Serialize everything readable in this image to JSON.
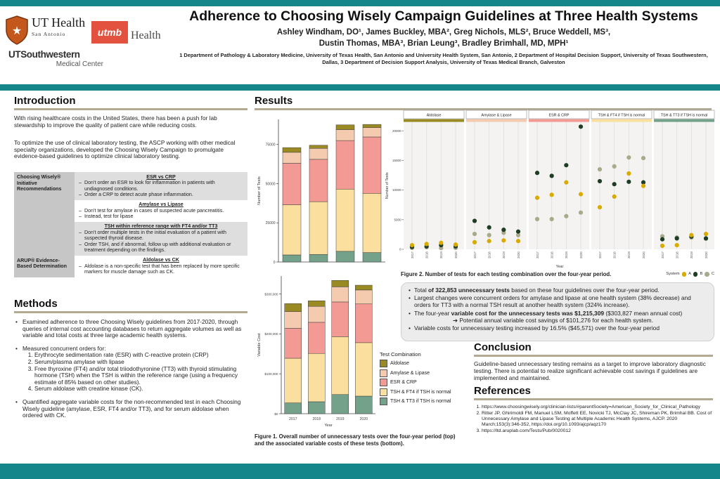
{
  "colors": {
    "teal": "#15868a",
    "section_rule": "#b2aa92",
    "palette": {
      "aldolase": "#9a8a23",
      "amylase": "#f4cbae",
      "esr": "#f49a94",
      "ft4": "#fbdf9e",
      "tt3": "#74a189"
    },
    "systems": {
      "A": "#d9ab00",
      "B": "#1e3d24",
      "C": "#a9a98c"
    }
  },
  "logos": {
    "uthealth": {
      "name": "UT Health",
      "sub": "San Antonio",
      "icon": "shield-star"
    },
    "utmb": {
      "box": "utmb",
      "text": "Health"
    },
    "utsw": {
      "main": "UTSouthwestern",
      "sub": "Medical Center"
    }
  },
  "header": {
    "title": "Adherence to Choosing Wisely Campaign Guidelines at Three Health Systems",
    "authors1": "Ashley Windham, DO¹, James Buckley, MBA², Greg Nichols, MLS², Bruce Weddell, MS³,",
    "authors2": "Dustin Thomas, MBA³, Brian Leung³, Bradley Brimhall, MD, MPH¹",
    "affiliations": "1 Department of Pathology & Laboratory Medicine, University of Texas Health, San Antonio and University Health System, San Antonio, 2 Department of Hospital Decision Support, University of Texas Southwestern, Dallas, 3 Department of Decision Support Analysis, University of Texas Medical Branch, Galveston"
  },
  "intro": {
    "heading": "Introduction",
    "p1": "With rising healthcare costs in the United States, there has been a push for lab stewardship to improve the quality of patient care while reducing costs.",
    "p2": "To optimize the use of clinical laboratory testing, the ASCP working with other medical specialty organizations, developed the Choosing Wisely Campaign to promulgate evidence-based guidelines to optimize clinical laboratory testing.",
    "table": {
      "label1": "Choosing Wisely® Initiative Recommendations",
      "label2": "ARUP® Evidence-Based Determination",
      "blocks": [
        {
          "title": "ESR vs CRP",
          "shaded": true,
          "group": 1,
          "bullets": [
            "Don’t order an ESR to look for inflammation in patients with undiagnosed conditions.",
            "Order a CRP to detect acute phase inflammation."
          ]
        },
        {
          "title": "Amylase vs Lipase",
          "shaded": false,
          "group": 1,
          "bullets": [
            "Don’t test for amylase in cases of suspected acute pancreatitis.",
            "Instead, test for lipase"
          ]
        },
        {
          "title": "TSH within reference range with FT4 and/or TT3",
          "shaded": true,
          "group": 1,
          "bullets": [
            "Don’t order multiple tests in the initial evaluation of a patient with suspected thyroid disease.",
            "Order TSH, and if abnormal, follow up with additional evaluation  or treatment depending on the findings."
          ]
        },
        {
          "title": "Aldolase vs CK",
          "shaded": false,
          "group": 2,
          "bullets": [
            "Aldolase is a non-specific test that has been replaced by more specific markers for muscle damage such as CK."
          ]
        }
      ]
    }
  },
  "methods": {
    "heading": "Methods",
    "bullet1": "Examined adherence to three Choosing Wisely guidelines from 2017-2020, through queries of internal cost accounting databases to return aggregate volumes as well as variable and total costs at three large academic health systems.",
    "bullet2_intro": "Measured concurrent orders for:",
    "bullet2_items": [
      "Erythrocyte sedimentation rate (ESR) with C-reactive protein (CRP)",
      "Serum/plasma amylase with lipase",
      "Free thyroxine (FT4) and/or total triiodothyronine (TT3) with thyroid stimulating hormone (TSH) when the TSH is within the reference range (using a frequency estimate of 85% based on other studies).",
      "Serum aldolase with creatine kinase (CK)."
    ],
    "bullet3": "Quantified aggregate variable costs for the non-recommended test in each Choosing Wisely guideline (amylase, ESR, FT4 and/or TT3), and for serum aldolase when ordered with CK."
  },
  "results": {
    "heading": "Results",
    "box_bullets": [
      {
        "segments": [
          {
            "t": "Total ",
            "b": 0
          },
          {
            "t": "of 322,853 unnecessary tests",
            "b": 1
          },
          {
            "t": " based on these four guidelines over the four-year period.",
            "b": 0
          }
        ]
      },
      {
        "segments": [
          {
            "t": "Largest changes were concurrent orders for amylase and lipase at one health system (38% decrease) and orders for TT3 with a normal TSH result at another health system (324% increase).",
            "b": 0
          }
        ]
      },
      {
        "segments": [
          {
            "t": "The four-year ",
            "b": 0
          },
          {
            "t": "variable cost for the unnecessary tests was $1,215,309",
            "b": 1
          },
          {
            "t": " ($303,827 mean annual cost)",
            "b": 0
          }
        ],
        "sub": "➔ Potential annual variable cost savings of $101,276 for each health system."
      },
      {
        "segments": [
          {
            "t": "Variable costs for unnecessary testing increased by 16.5% ($45,571) over the four-year period",
            "b": 0
          }
        ]
      }
    ]
  },
  "figures": {
    "fig1_caption": "Figure 1. Overall number of unnecessary tests over the four-year period (top) and the associated variable costs of these tests (bottom).",
    "fig2_caption": "Figure 2. Number of tests for each testing combination over the four-year period.",
    "test_legend_title": "Test Combination",
    "test_legend_items": [
      {
        "label": "Aldolase",
        "color": "aldolase"
      },
      {
        "label": "Amylase & Lipase",
        "color": "amylase"
      },
      {
        "label": "ESR & CRP",
        "color": "esr"
      },
      {
        "label": "TSH & FT4 if TSH is normal",
        "color": "ft4"
      },
      {
        "label": "TSH & TT3 if TSH is normal",
        "color": "tt3"
      }
    ],
    "system_legend_label": "System"
  },
  "chart_data": [
    {
      "id": "unnecessary_tests_by_year",
      "type": "bar",
      "stacked": true,
      "categories": [
        "2017",
        "2018",
        "2019",
        "2020"
      ],
      "series": [
        {
          "name": "TSH & TT3 if TSH is normal",
          "color": "tt3",
          "values": [
            4500,
            4800,
            6800,
            6000
          ]
        },
        {
          "name": "TSH & FT4 if TSH is normal",
          "color": "ft4",
          "values": [
            32000,
            33700,
            39700,
            37800
          ]
        },
        {
          "name": "ESR & CRP",
          "color": "esr",
          "values": [
            26500,
            27000,
            31000,
            36000
          ]
        },
        {
          "name": "Amylase & Lipase",
          "color": "amylase",
          "values": [
            7000,
            7000,
            7000,
            6000
          ]
        },
        {
          "name": "Aldolase",
          "color": "aldolase",
          "values": [
            3000,
            2000,
            3000,
            2000
          ]
        }
      ],
      "ylabel": "Number of Tests",
      "xlabel": "",
      "ylim": [
        0,
        91000
      ],
      "yticks": [
        0,
        25000,
        50000,
        75000
      ],
      "ytick_labels": [
        "0",
        "25000",
        "50000",
        "75000"
      ],
      "show_x_labels": false
    },
    {
      "id": "variable_cost_by_year",
      "type": "bar",
      "stacked": true,
      "categories": [
        "2017",
        "2018",
        "2019",
        "2020"
      ],
      "series": [
        {
          "name": "TSH & TT3 if TSH is normal",
          "color": "tt3",
          "values": [
            27000,
            30000,
            48000,
            44000
          ]
        },
        {
          "name": "TSH & FT4 if TSH is normal",
          "color": "ft4",
          "values": [
            112000,
            121000,
            145000,
            134000
          ]
        },
        {
          "name": "ESR & CRP",
          "color": "esr",
          "values": [
            75000,
            78000,
            87000,
            97000
          ]
        },
        {
          "name": "Amylase & Lipase",
          "color": "amylase",
          "values": [
            42000,
            40000,
            38000,
            35000
          ]
        },
        {
          "name": "Aldolase",
          "color": "aldolase",
          "values": [
            20000,
            14000,
            16000,
            12000
          ]
        }
      ],
      "ylabel": "Variable Cost",
      "xlabel": "Year",
      "ylim": [
        0,
        345000
      ],
      "yticks": [
        0,
        100000,
        200000,
        300000
      ],
      "ytick_labels": [
        "$0",
        "$100,000",
        "$200,000",
        "$300,000"
      ],
      "show_x_labels": true
    },
    {
      "id": "tests_by_combination_and_system",
      "type": "scatter",
      "faceted": true,
      "x": [
        "2017",
        "2018",
        "2019",
        "2020"
      ],
      "xlabel": "Year",
      "ylabel": "Number of Tests",
      "ylim": [
        0,
        21500
      ],
      "yticks": [
        0,
        5000,
        10000,
        15000,
        20000
      ],
      "ytick_labels": [
        "0",
        "5000",
        "10000",
        "15000",
        "20000"
      ],
      "systems": [
        "A",
        "B",
        "C"
      ],
      "facets": [
        {
          "label": "Aldolase",
          "color": "aldolase",
          "series": {
            "A": [
              700,
              900,
              1100,
              800
            ],
            "B": [
              400,
              500,
              700,
              500
            ],
            "C": [
              250,
              350,
              200,
              250
            ]
          }
        },
        {
          "label": "Amylase & Lipase",
          "color": "amylase",
          "series": {
            "A": [
              1200,
              1400,
              1500,
              1400
            ],
            "B": [
              4800,
              3700,
              3300,
              3000
            ],
            "C": [
              2600,
              2400,
              2800,
              2400
            ]
          }
        },
        {
          "label": "ESR & CRP",
          "color": "esr",
          "series": {
            "A": [
              8700,
              9200,
              11300,
              9300
            ],
            "B": [
              12900,
              12400,
              14200,
              20700
            ],
            "C": [
              5100,
              5100,
              5600,
              6200
            ]
          }
        },
        {
          "label": "TSH & FT4 if TSH is normal",
          "color": "ft4",
          "series": {
            "A": [
              7100,
              8900,
              12800,
              10700
            ],
            "B": [
              11500,
              11000,
              11400,
              11300
            ],
            "C": [
              13500,
              14000,
              15500,
              15400
            ]
          }
        },
        {
          "label": "TSH & TT3 if TSH is normal",
          "color": "tt3",
          "series": {
            "A": [
              600,
              700,
              2400,
              2600
            ],
            "B": [
              1700,
              1850,
              2150,
              1850
            ],
            "C": [
              2200,
              2000,
              2000,
              1800
            ]
          }
        }
      ]
    }
  ],
  "conclusion": {
    "heading": "Conclusion",
    "text": "Guideline-based unnecessary testing remains as a target to improve laboratory diagnostic testing.  There is potential to realize significant achievable cost savings if guidelines are implemented and maintained."
  },
  "references": {
    "heading": "References",
    "items": [
      "https://www.choosingwisely.org/clinician-lists/#parentSociety=American_Society_for_Clinical_Pathology",
      "Ritter JP, Ghirimoldi FM, Manuel LSM, Moffett EE, Novicki TJ, McClay JC, Shireman PK, Brimhal BB. Cost of Unnecessary Amylase and Lipase Testing at Multiple Academic Health Systems, AJCP. 2020 March;153(3):346-352, https://doi.org/10.1093/ajcp/aqz170",
      "https://ltd.aruplab.com/Tests/Pub/0020012"
    ]
  }
}
